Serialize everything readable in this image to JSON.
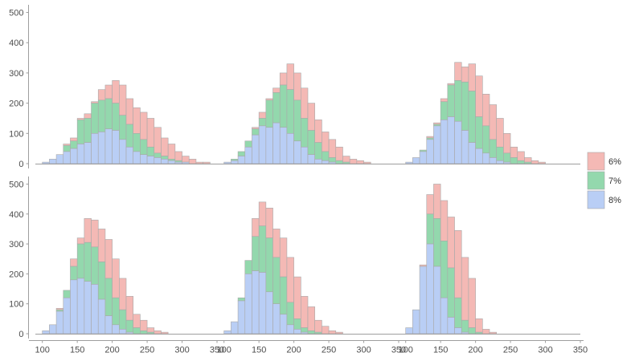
{
  "chart_data": {
    "type": "bar",
    "layout": "faceted stacked histogram, 2 rows x 3 columns, shared axes",
    "bin_width": 10,
    "bin_starts": [
      100,
      110,
      120,
      130,
      140,
      150,
      160,
      170,
      180,
      190,
      200,
      210,
      220,
      230,
      240,
      250,
      260,
      270,
      280,
      290,
      300,
      310,
      320,
      330
    ],
    "xlim": [
      90,
      350
    ],
    "ylim": [
      0,
      520
    ],
    "x_ticks": [
      "100",
      "150",
      "200",
      "250",
      "300",
      "350"
    ],
    "y_ticks": [
      "0",
      "100",
      "200",
      "300",
      "400",
      "500"
    ],
    "grid": false,
    "legend_position": "right",
    "series": [
      {
        "name": "6%",
        "color": "#f4b9b5"
      },
      {
        "name": "7%",
        "color": "#93d8ad"
      },
      {
        "name": "8%",
        "color": "#b9cef5"
      }
    ],
    "panels": [
      {
        "row": 0,
        "col": 0,
        "totals": [
          5,
          15,
          30,
          65,
          85,
          150,
          165,
          205,
          245,
          260,
          275,
          260,
          215,
          185,
          170,
          150,
          120,
          85,
          65,
          40,
          25,
          15,
          5,
          5
        ],
        "s7": [
          5,
          15,
          30,
          60,
          75,
          145,
          150,
          200,
          210,
          215,
          200,
          160,
          130,
          100,
          80,
          55,
          35,
          25,
          15,
          10,
          5,
          0,
          0,
          0
        ],
        "s8": [
          5,
          15,
          30,
          40,
          50,
          65,
          70,
          100,
          105,
          115,
          110,
          80,
          55,
          40,
          30,
          25,
          20,
          15,
          10,
          5,
          5,
          0,
          0,
          0
        ]
      },
      {
        "row": 0,
        "col": 1,
        "totals": [
          5,
          15,
          40,
          75,
          120,
          170,
          215,
          250,
          300,
          330,
          300,
          250,
          200,
          145,
          105,
          80,
          55,
          25,
          15,
          10,
          5,
          0,
          0,
          0
        ],
        "s7": [
          5,
          15,
          40,
          75,
          115,
          150,
          210,
          235,
          260,
          245,
          210,
          150,
          110,
          70,
          40,
          20,
          10,
          5,
          0,
          0,
          0,
          0,
          0,
          0
        ],
        "s8": [
          5,
          10,
          25,
          55,
          95,
          125,
          120,
          135,
          120,
          100,
          75,
          55,
          30,
          15,
          10,
          5,
          0,
          0,
          0,
          0,
          0,
          0,
          0,
          0
        ]
      },
      {
        "row": 0,
        "col": 2,
        "totals": [
          5,
          20,
          45,
          90,
          135,
          215,
          265,
          335,
          320,
          330,
          290,
          230,
          195,
          150,
          100,
          55,
          40,
          20,
          10,
          5,
          0,
          0,
          0,
          0
        ],
        "s7": [
          5,
          20,
          45,
          85,
          130,
          205,
          260,
          275,
          270,
          240,
          155,
          125,
          80,
          55,
          35,
          20,
          10,
          5,
          0,
          0,
          0,
          0,
          0,
          0
        ],
        "s8": [
          5,
          20,
          40,
          80,
          125,
          145,
          155,
          140,
          110,
          70,
          50,
          35,
          20,
          10,
          5,
          0,
          0,
          0,
          0,
          0,
          0,
          0,
          0,
          0
        ]
      },
      {
        "row": 1,
        "col": 0,
        "totals": [
          10,
          30,
          85,
          145,
          250,
          320,
          385,
          380,
          350,
          315,
          250,
          185,
          125,
          65,
          45,
          20,
          10,
          5,
          0,
          0,
          0,
          0,
          0,
          0
        ],
        "s7": [
          10,
          30,
          80,
          145,
          225,
          300,
          305,
          290,
          240,
          185,
          120,
          80,
          45,
          20,
          10,
          5,
          0,
          0,
          0,
          0,
          0,
          0,
          0,
          0
        ],
        "s8": [
          10,
          30,
          75,
          120,
          180,
          185,
          175,
          165,
          115,
          60,
          30,
          15,
          5,
          0,
          0,
          0,
          0,
          0,
          0,
          0,
          0,
          0,
          0,
          0
        ]
      },
      {
        "row": 1,
        "col": 1,
        "totals": [
          10,
          40,
          120,
          245,
          385,
          440,
          420,
          350,
          320,
          255,
          190,
          125,
          90,
          45,
          25,
          10,
          5,
          0,
          0,
          0,
          0,
          0,
          0,
          0
        ],
        "s7": [
          10,
          40,
          120,
          245,
          325,
          360,
          320,
          255,
          190,
          105,
          50,
          20,
          10,
          5,
          0,
          0,
          0,
          0,
          0,
          0,
          0,
          0,
          0,
          0
        ],
        "s8": [
          10,
          40,
          110,
          200,
          210,
          205,
          140,
          100,
          65,
          30,
          15,
          5,
          0,
          0,
          0,
          0,
          0,
          0,
          0,
          0,
          0,
          0,
          0,
          0
        ]
      },
      {
        "row": 1,
        "col": 2,
        "totals": [
          20,
          80,
          230,
          465,
          500,
          445,
          390,
          345,
          255,
          185,
          50,
          15,
          5,
          0,
          0,
          0,
          0,
          0,
          0,
          0,
          0,
          0,
          0,
          0
        ],
        "s7": [
          20,
          80,
          225,
          400,
          385,
          310,
          220,
          120,
          45,
          20,
          5,
          0,
          0,
          0,
          0,
          0,
          0,
          0,
          0,
          0,
          0,
          0,
          0,
          0
        ],
        "s8": [
          20,
          80,
          225,
          300,
          225,
          120,
          55,
          20,
          5,
          0,
          0,
          0,
          0,
          0,
          0,
          0,
          0,
          0,
          0,
          0,
          0,
          0,
          0,
          0
        ]
      }
    ]
  }
}
